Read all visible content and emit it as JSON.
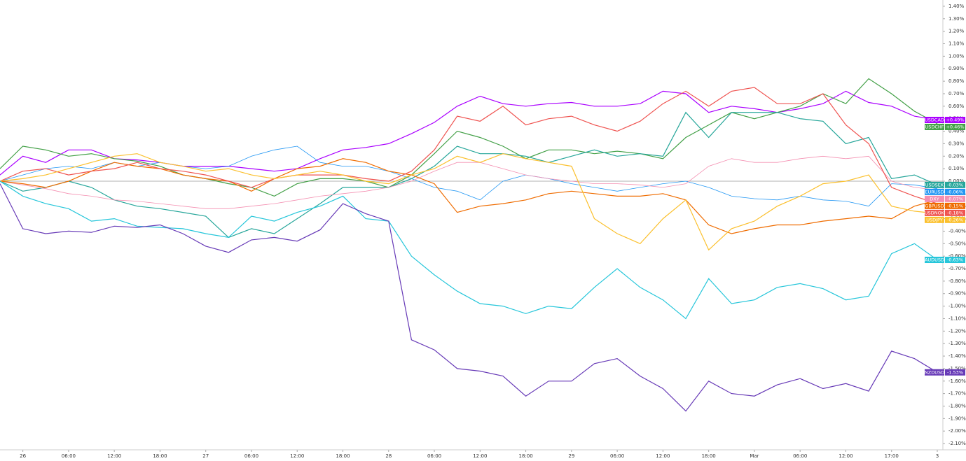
{
  "chart_data": {
    "type": "line",
    "categories": [
      null,
      "26",
      null,
      "06:00",
      null,
      "12:00",
      null,
      "18:00",
      null,
      "27",
      null,
      "06:00",
      null,
      "12:00",
      null,
      "18:00",
      null,
      "28",
      null,
      "06:00",
      null,
      "12:00",
      null,
      "18:00",
      null,
      "29",
      null,
      "06:00",
      null,
      "12:00",
      null,
      "18:00",
      null,
      "Mar",
      null,
      "06:00",
      null,
      "12:00",
      null,
      "17:00",
      null,
      "3"
    ],
    "ylim": [
      -2.15,
      1.45
    ],
    "yticks": [
      {
        "value": 1.4,
        "label": "1.40%"
      },
      {
        "value": 1.3,
        "label": "1.30%"
      },
      {
        "value": 1.2,
        "label": "1.20%"
      },
      {
        "value": 1.1,
        "label": "1.10%"
      },
      {
        "value": 1.0,
        "label": "1.00%"
      },
      {
        "value": 0.9,
        "label": "0.90%"
      },
      {
        "value": 0.8,
        "label": "0.80%"
      },
      {
        "value": 0.7,
        "label": "0.70%"
      },
      {
        "value": 0.6,
        "label": "0.60%"
      },
      {
        "value": 0.5,
        "label": "0.50%"
      },
      {
        "value": 0.4,
        "label": "0.40%"
      },
      {
        "value": 0.3,
        "label": "0.30%"
      },
      {
        "value": 0.2,
        "label": "0.20%"
      },
      {
        "value": 0.1,
        "label": "0.10%"
      },
      {
        "value": 0,
        "label": "0.00%"
      },
      {
        "value": -0.1,
        "label": "-0.10%"
      },
      {
        "value": -0.2,
        "label": "-0.20%"
      },
      {
        "value": -0.3,
        "label": "-0.30%"
      },
      {
        "value": -0.4,
        "label": "-0.40%"
      },
      {
        "value": -0.5,
        "label": "-0.50%"
      },
      {
        "value": -0.6,
        "label": "-0.60%"
      },
      {
        "value": -0.7,
        "label": "-0.70%"
      },
      {
        "value": -0.8,
        "label": "-0.80%"
      },
      {
        "value": -0.9,
        "label": "-0.90%"
      },
      {
        "value": -1.0,
        "label": "-1.00%"
      },
      {
        "value": -1.1,
        "label": "-1.10%"
      },
      {
        "value": -1.2,
        "label": "-1.20%"
      },
      {
        "value": -1.3,
        "label": "-1.30%"
      },
      {
        "value": -1.4,
        "label": "-1.40%"
      },
      {
        "value": -1.5,
        "label": "-1.50%"
      },
      {
        "value": -1.6,
        "label": "-1.60%"
      },
      {
        "value": -1.7,
        "label": "-1.70%"
      },
      {
        "value": -1.8,
        "label": "-1.80%"
      },
      {
        "value": -1.9,
        "label": "-1.90%"
      },
      {
        "value": -2.0,
        "label": "-2.00%"
      },
      {
        "value": -2.1,
        "label": "-2.10%"
      }
    ],
    "series": [
      {
        "name": "USDCAD",
        "color": "#aa00ff",
        "values": [
          0.05,
          0.2,
          0.15,
          0.25,
          0.25,
          0.18,
          0.17,
          0.15,
          0.12,
          0.12,
          0.12,
          0.1,
          0.08,
          0.1,
          0.18,
          0.25,
          0.27,
          0.3,
          0.38,
          0.47,
          0.6,
          0.68,
          0.62,
          0.6,
          0.62,
          0.63,
          0.6,
          0.6,
          0.62,
          0.72,
          0.7,
          0.55,
          0.6,
          0.58,
          0.55,
          0.58,
          0.62,
          0.72,
          0.63,
          0.6,
          0.52,
          0.49
        ],
        "value_labels": [
          null,
          null,
          null,
          null,
          null,
          null,
          null,
          null,
          null,
          null,
          null,
          null,
          null,
          null,
          null,
          null,
          null,
          null,
          null,
          null,
          null,
          null,
          null,
          null,
          null,
          null,
          null,
          null,
          null,
          null,
          null,
          null,
          null,
          null,
          null,
          null,
          null,
          null,
          null,
          null,
          null,
          "+0.49%"
        ]
      },
      {
        "name": "USDCHF",
        "color": "#43a047",
        "values": [
          0.1,
          0.28,
          0.25,
          0.2,
          0.22,
          0.18,
          0.16,
          0.12,
          0.05,
          0.02,
          -0.02,
          -0.05,
          -0.12,
          -0.02,
          0.02,
          0.02,
          0.0,
          -0.05,
          0.05,
          0.22,
          0.4,
          0.35,
          0.28,
          0.18,
          0.25,
          0.25,
          0.22,
          0.24,
          0.22,
          0.18,
          0.35,
          0.45,
          0.55,
          0.5,
          0.55,
          0.6,
          0.7,
          0.62,
          0.82,
          0.7,
          0.56,
          0.46
        ],
        "value_labels": [
          null,
          null,
          null,
          null,
          null,
          null,
          null,
          null,
          null,
          null,
          null,
          null,
          null,
          null,
          null,
          null,
          null,
          null,
          null,
          null,
          null,
          null,
          null,
          null,
          null,
          null,
          null,
          null,
          null,
          null,
          null,
          null,
          null,
          null,
          null,
          null,
          null,
          null,
          null,
          null,
          null,
          "+0.46%"
        ]
      },
      {
        "name": "EURUSD",
        "color": "#2196f3",
        "values": [
          0,
          0.05,
          0.1,
          0.12,
          0.1,
          0.15,
          0.12,
          0.15,
          0.12,
          0.1,
          0.12,
          0.2,
          0.25,
          0.28,
          0.15,
          0.12,
          0.12,
          0.08,
          0.02,
          -0.05,
          -0.08,
          -0.15,
          0.0,
          0.05,
          0.02,
          -0.02,
          -0.05,
          -0.08,
          -0.05,
          -0.02,
          0.0,
          -0.05,
          -0.12,
          -0.14,
          -0.15,
          -0.12,
          -0.15,
          -0.16,
          -0.2,
          -0.02,
          -0.03,
          -0.06
        ],
        "value_labels": [
          null,
          null,
          null,
          null,
          null,
          null,
          null,
          null,
          null,
          null,
          null,
          null,
          null,
          null,
          null,
          null,
          null,
          null,
          null,
          null,
          null,
          null,
          null,
          null,
          null,
          null,
          null,
          null,
          null,
          null,
          null,
          null,
          null,
          null,
          null,
          null,
          null,
          null,
          null,
          null,
          null,
          "-0.06%"
        ]
      },
      {
        "name": "USDSEK",
        "color": "#26a69a",
        "values": [
          0,
          -0.08,
          -0.05,
          0.0,
          -0.05,
          -0.15,
          -0.2,
          -0.22,
          -0.25,
          -0.28,
          -0.45,
          -0.38,
          -0.42,
          -0.3,
          -0.18,
          -0.05,
          -0.05,
          -0.05,
          0.02,
          0.12,
          0.28,
          0.22,
          0.22,
          0.2,
          0.15,
          0.2,
          0.25,
          0.2,
          0.22,
          0.2,
          0.55,
          0.35,
          0.55,
          0.55,
          0.55,
          0.5,
          0.48,
          0.3,
          0.35,
          0.02,
          0.05,
          -0.03
        ],
        "value_labels": [
          null,
          null,
          null,
          null,
          null,
          null,
          null,
          null,
          null,
          null,
          null,
          null,
          null,
          null,
          null,
          null,
          null,
          null,
          null,
          null,
          null,
          null,
          null,
          null,
          null,
          null,
          null,
          null,
          null,
          null,
          null,
          null,
          null,
          null,
          null,
          null,
          null,
          null,
          null,
          null,
          null,
          "-0.03%"
        ]
      },
      {
        "name": "DXY",
        "color": "#f48fb1",
        "values": [
          0,
          -0.03,
          -0.06,
          -0.1,
          -0.12,
          -0.15,
          -0.16,
          -0.18,
          -0.2,
          -0.22,
          -0.22,
          -0.2,
          -0.18,
          -0.15,
          -0.12,
          -0.1,
          -0.08,
          -0.05,
          0.0,
          0.08,
          0.15,
          0.15,
          0.1,
          0.05,
          0.02,
          0.0,
          -0.02,
          -0.02,
          -0.03,
          -0.05,
          -0.02,
          0.12,
          0.18,
          0.15,
          0.15,
          0.18,
          0.2,
          0.18,
          0.2,
          0.0,
          -0.05,
          -0.07
        ],
        "value_labels": [
          null,
          null,
          null,
          null,
          null,
          null,
          null,
          null,
          null,
          null,
          null,
          null,
          null,
          null,
          null,
          null,
          null,
          null,
          null,
          null,
          null,
          null,
          null,
          null,
          null,
          null,
          null,
          null,
          null,
          null,
          null,
          null,
          null,
          null,
          null,
          null,
          null,
          null,
          null,
          null,
          null,
          "-0.07%"
        ]
      },
      {
        "name": "GBPUSD",
        "color": "#ef6c00",
        "values": [
          0,
          -0.02,
          -0.05,
          0.0,
          0.08,
          0.15,
          0.12,
          0.1,
          0.05,
          0.02,
          0.0,
          -0.08,
          0.02,
          0.1,
          0.12,
          0.18,
          0.15,
          0.08,
          0.05,
          -0.02,
          -0.25,
          -0.2,
          -0.18,
          -0.15,
          -0.1,
          -0.08,
          -0.1,
          -0.12,
          -0.12,
          -0.1,
          -0.15,
          -0.35,
          -0.42,
          -0.38,
          -0.35,
          -0.35,
          -0.32,
          -0.3,
          -0.28,
          -0.3,
          -0.2,
          -0.15
        ],
        "value_labels": [
          null,
          null,
          null,
          null,
          null,
          null,
          null,
          null,
          null,
          null,
          null,
          null,
          null,
          null,
          null,
          null,
          null,
          null,
          null,
          null,
          null,
          null,
          null,
          null,
          null,
          null,
          null,
          null,
          null,
          null,
          null,
          null,
          null,
          null,
          null,
          null,
          null,
          null,
          null,
          null,
          null,
          "-0.15%"
        ]
      },
      {
        "name": "USDNOK",
        "color": "#ef5350",
        "values": [
          0,
          0.08,
          0.1,
          0.05,
          0.08,
          0.1,
          0.15,
          0.1,
          0.08,
          0.05,
          0.0,
          -0.05,
          0.02,
          0.05,
          0.05,
          0.05,
          0.02,
          0.0,
          0.08,
          0.25,
          0.52,
          0.48,
          0.6,
          0.45,
          0.5,
          0.52,
          0.45,
          0.4,
          0.48,
          0.62,
          0.72,
          0.6,
          0.72,
          0.75,
          0.62,
          0.62,
          0.7,
          0.45,
          0.3,
          -0.05,
          -0.12,
          -0.18
        ],
        "value_labels": [
          null,
          null,
          null,
          null,
          null,
          null,
          null,
          null,
          null,
          null,
          null,
          null,
          null,
          null,
          null,
          null,
          null,
          null,
          null,
          null,
          null,
          null,
          null,
          null,
          null,
          null,
          null,
          null,
          null,
          null,
          null,
          null,
          null,
          null,
          null,
          null,
          null,
          null,
          null,
          null,
          null,
          "-0.18%"
        ]
      },
      {
        "name": "USDJPY",
        "color": "#fbc02d",
        "values": [
          0,
          0.02,
          0.05,
          0.1,
          0.15,
          0.2,
          0.22,
          0.15,
          0.12,
          0.08,
          0.1,
          0.05,
          0.02,
          0.05,
          0.08,
          0.05,
          0.0,
          -0.02,
          0.05,
          0.1,
          0.2,
          0.15,
          0.22,
          0.18,
          0.15,
          0.12,
          -0.3,
          -0.42,
          -0.5,
          -0.3,
          -0.15,
          -0.55,
          -0.38,
          -0.32,
          -0.2,
          -0.12,
          -0.02,
          0.0,
          0.05,
          -0.2,
          -0.24,
          -0.26
        ],
        "value_labels": [
          null,
          null,
          null,
          null,
          null,
          null,
          null,
          null,
          null,
          null,
          null,
          null,
          null,
          null,
          null,
          null,
          null,
          null,
          null,
          null,
          null,
          null,
          null,
          null,
          null,
          null,
          null,
          null,
          null,
          null,
          null,
          null,
          null,
          null,
          null,
          null,
          null,
          null,
          null,
          null,
          null,
          "-0.26%"
        ]
      },
      {
        "name": "AUDUSD",
        "color": "#26c6da",
        "values": [
          0,
          -0.12,
          -0.18,
          -0.22,
          -0.32,
          -0.3,
          -0.36,
          -0.37,
          -0.38,
          -0.42,
          -0.45,
          -0.28,
          -0.32,
          -0.25,
          -0.2,
          -0.12,
          -0.3,
          -0.32,
          -0.6,
          -0.75,
          -0.88,
          -0.98,
          -1.0,
          -1.06,
          -1.0,
          -1.02,
          -0.85,
          -0.7,
          -0.85,
          -0.95,
          -1.1,
          -0.78,
          -0.98,
          -0.95,
          -0.85,
          -0.82,
          -0.86,
          -0.95,
          -0.92,
          -0.58,
          -0.5,
          -0.63
        ],
        "value_labels": [
          null,
          null,
          null,
          null,
          null,
          null,
          null,
          null,
          null,
          null,
          null,
          null,
          null,
          null,
          null,
          null,
          null,
          null,
          null,
          null,
          null,
          null,
          null,
          null,
          null,
          null,
          null,
          null,
          null,
          null,
          null,
          null,
          null,
          null,
          null,
          null,
          null,
          null,
          null,
          null,
          null,
          "-0.63%"
        ]
      },
      {
        "name": "NZDUSD",
        "color": "#673ab7",
        "values": [
          -0.02,
          -0.38,
          -0.42,
          -0.4,
          -0.41,
          -0.36,
          -0.37,
          -0.35,
          -0.42,
          -0.52,
          -0.57,
          -0.47,
          -0.45,
          -0.48,
          -0.39,
          -0.18,
          -0.26,
          -0.32,
          -1.27,
          -1.35,
          -1.5,
          -1.52,
          -1.56,
          -1.72,
          -1.6,
          -1.6,
          -1.46,
          -1.42,
          -1.56,
          -1.66,
          -1.84,
          -1.6,
          -1.7,
          -1.72,
          -1.63,
          -1.58,
          -1.66,
          -1.62,
          -1.68,
          -1.36,
          -1.42,
          -1.53
        ],
        "value_labels": [
          null,
          null,
          null,
          null,
          null,
          null,
          null,
          null,
          null,
          null,
          null,
          null,
          null,
          null,
          null,
          null,
          null,
          null,
          null,
          null,
          null,
          null,
          null,
          null,
          null,
          null,
          null,
          null,
          null,
          null,
          null,
          null,
          null,
          null,
          null,
          null,
          null,
          null,
          null,
          null,
          null,
          "-1.53%"
        ]
      }
    ]
  }
}
